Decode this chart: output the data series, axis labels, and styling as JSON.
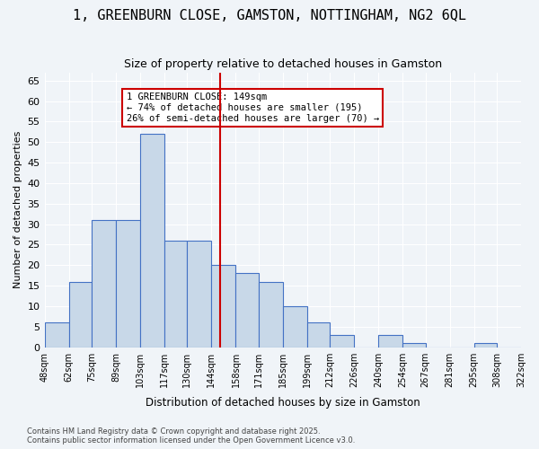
{
  "title": "1, GREENBURN CLOSE, GAMSTON, NOTTINGHAM, NG2 6QL",
  "subtitle": "Size of property relative to detached houses in Gamston",
  "xlabel": "Distribution of detached houses by size in Gamston",
  "ylabel": "Number of detached properties",
  "bins": [
    "48sqm",
    "62sqm",
    "75sqm",
    "89sqm",
    "103sqm",
    "117sqm",
    "130sqm",
    "144sqm",
    "158sqm",
    "171sqm",
    "185sqm",
    "199sqm",
    "212sqm",
    "226sqm",
    "240sqm",
    "254sqm",
    "267sqm",
    "281sqm",
    "295sqm",
    "308sqm",
    "322sqm"
  ],
  "bar_heights": [
    6,
    16,
    31,
    31,
    52,
    26,
    26,
    20,
    18,
    16,
    10,
    6,
    3,
    0,
    3,
    1,
    0,
    0,
    1,
    0
  ],
  "bar_color": "#c8d8e8",
  "bar_edge_color": "#4472c4",
  "property_line_x": 149,
  "bin_edges": [
    48,
    62,
    75,
    89,
    103,
    117,
    130,
    144,
    158,
    171,
    185,
    199,
    212,
    226,
    240,
    254,
    267,
    281,
    295,
    308,
    322
  ],
  "annotation_title": "1 GREENBURN CLOSE: 149sqm",
  "annotation_line1": "← 74% of detached houses are smaller (195)",
  "annotation_line2": "26% of semi-detached houses are larger (70) →",
  "vline_color": "#cc0000",
  "annotation_box_edge": "#cc0000",
  "background_color": "#f0f4f8",
  "grid_color": "#ffffff",
  "footer1": "Contains HM Land Registry data © Crown copyright and database right 2025.",
  "footer2": "Contains public sector information licensed under the Open Government Licence v3.0.",
  "ylim": [
    0,
    67
  ],
  "yticks": [
    0,
    5,
    10,
    15,
    20,
    25,
    30,
    35,
    40,
    45,
    50,
    55,
    60,
    65
  ]
}
